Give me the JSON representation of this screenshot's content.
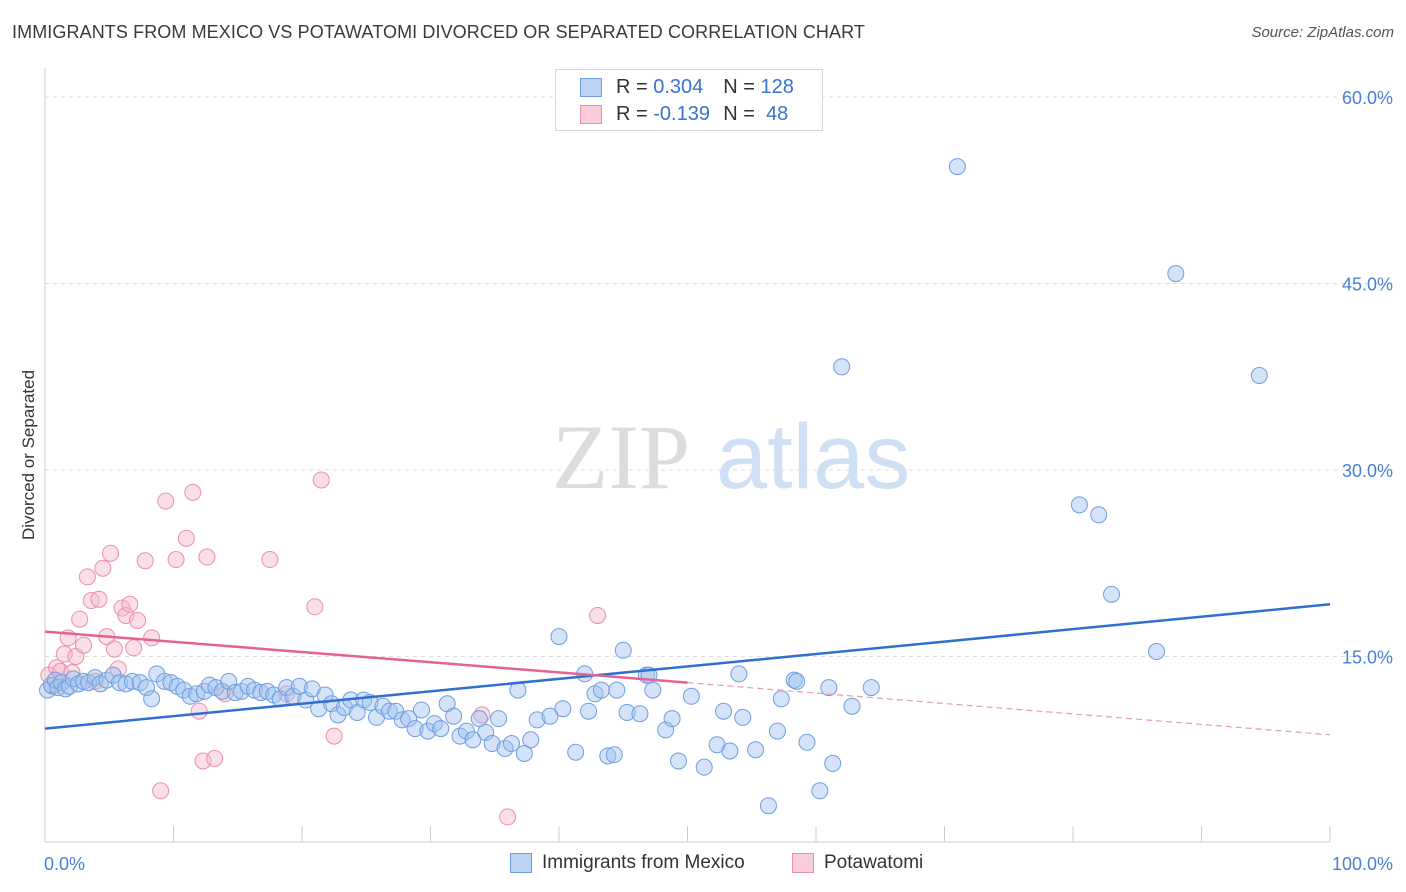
{
  "title": "IMMIGRANTS FROM MEXICO VS POTAWATOMI DIVORCED OR SEPARATED CORRELATION CHART",
  "source": "Source: ZipAtlas.com",
  "watermark": {
    "zip": "ZIP",
    "atlas": "atlas"
  },
  "legend_top": [
    {
      "r_label": "R =",
      "r_value": "0.304",
      "n_label": "N =",
      "n_value": "128",
      "color": "#9fc0ee",
      "border": "#6f9ee0"
    },
    {
      "r_label": "R =",
      "r_value": "-0.139",
      "n_label": "N =",
      "n_value": "48",
      "color": "#f6b9cc",
      "border": "#ea8fab"
    }
  ],
  "chart_data": {
    "type": "scatter",
    "title": "IMMIGRANTS FROM MEXICO VS POTAWATOMI DIVORCED OR SEPARATED CORRELATION CHART",
    "xlabel": "",
    "ylabel": "Divorced or Separated",
    "xlim": [
      0,
      100
    ],
    "ylim": [
      0,
      60
    ],
    "x_tick_labels": [
      "0.0%",
      "100.0%"
    ],
    "y_ticks": [
      15,
      30,
      45,
      60
    ],
    "y_tick_labels": [
      "15.0%",
      "30.0%",
      "45.0%",
      "60.0%"
    ],
    "grid": true,
    "legend_placement": "top-center",
    "series": [
      {
        "name": "Immigrants from Mexico",
        "color": "#9fc0ee",
        "edge": "#6f9ee0",
        "trend": {
          "x": [
            0,
            100
          ],
          "y": [
            9.2,
            19.2
          ],
          "color": "#2f6fd0"
        },
        "points": [
          [
            0.2,
            12.3
          ],
          [
            0.5,
            12.7
          ],
          [
            0.8,
            13.1
          ],
          [
            1.0,
            12.5
          ],
          [
            1.3,
            12.9
          ],
          [
            1.6,
            12.4
          ],
          [
            1.9,
            12.6
          ],
          [
            2.2,
            13.2
          ],
          [
            2.6,
            12.8
          ],
          [
            3.0,
            13.0
          ],
          [
            3.4,
            12.9
          ],
          [
            3.9,
            13.3
          ],
          [
            4.3,
            12.8
          ],
          [
            4.8,
            13.1
          ],
          [
            5.3,
            13.5
          ],
          [
            5.8,
            12.9
          ],
          [
            6.3,
            12.8
          ],
          [
            6.8,
            13.0
          ],
          [
            7.4,
            12.9
          ],
          [
            7.9,
            12.5
          ],
          [
            8.3,
            11.6
          ],
          [
            8.7,
            13.6
          ],
          [
            9.3,
            13.0
          ],
          [
            9.8,
            12.9
          ],
          [
            10.3,
            12.6
          ],
          [
            10.8,
            12.3
          ],
          [
            11.3,
            11.8
          ],
          [
            11.8,
            12.0
          ],
          [
            12.4,
            12.2
          ],
          [
            12.8,
            12.7
          ],
          [
            13.3,
            12.5
          ],
          [
            13.8,
            12.2
          ],
          [
            14.3,
            13.0
          ],
          [
            14.8,
            12.1
          ],
          [
            15.3,
            12.2
          ],
          [
            15.8,
            12.6
          ],
          [
            16.3,
            12.3
          ],
          [
            16.8,
            12.1
          ],
          [
            17.3,
            12.2
          ],
          [
            17.8,
            11.9
          ],
          [
            18.3,
            11.6
          ],
          [
            18.8,
            12.5
          ],
          [
            19.3,
            11.8
          ],
          [
            19.8,
            12.6
          ],
          [
            20.3,
            11.5
          ],
          [
            20.8,
            12.4
          ],
          [
            21.3,
            10.8
          ],
          [
            21.8,
            11.9
          ],
          [
            22.3,
            11.2
          ],
          [
            22.8,
            10.3
          ],
          [
            23.3,
            10.9
          ],
          [
            23.8,
            11.5
          ],
          [
            24.3,
            10.5
          ],
          [
            24.8,
            11.5
          ],
          [
            25.3,
            11.3
          ],
          [
            25.8,
            10.1
          ],
          [
            26.3,
            11.0
          ],
          [
            26.8,
            10.6
          ],
          [
            27.3,
            10.6
          ],
          [
            27.8,
            9.9
          ],
          [
            28.3,
            10.0
          ],
          [
            28.8,
            9.2
          ],
          [
            29.3,
            10.7
          ],
          [
            29.8,
            9.0
          ],
          [
            30.3,
            9.6
          ],
          [
            30.8,
            9.2
          ],
          [
            31.3,
            11.2
          ],
          [
            31.8,
            10.2
          ],
          [
            32.3,
            8.6
          ],
          [
            32.8,
            9.0
          ],
          [
            33.3,
            8.3
          ],
          [
            33.8,
            10.0
          ],
          [
            34.3,
            8.9
          ],
          [
            34.8,
            8.0
          ],
          [
            35.3,
            10.0
          ],
          [
            35.8,
            7.6
          ],
          [
            36.3,
            8.0
          ],
          [
            36.8,
            12.3
          ],
          [
            37.3,
            7.2
          ],
          [
            37.8,
            8.3
          ],
          [
            38.3,
            9.9
          ],
          [
            39.3,
            10.2
          ],
          [
            40.3,
            10.8
          ],
          [
            41.3,
            7.3
          ],
          [
            42.3,
            10.6
          ],
          [
            42.8,
            12.0
          ],
          [
            43.3,
            12.3
          ],
          [
            43.8,
            7.0
          ],
          [
            44.3,
            7.1
          ],
          [
            45.3,
            10.5
          ],
          [
            46.3,
            10.4
          ],
          [
            46.8,
            13.5
          ],
          [
            47.3,
            12.3
          ],
          [
            48.3,
            9.1
          ],
          [
            48.8,
            10.0
          ],
          [
            49.3,
            6.6
          ],
          [
            50.3,
            11.8
          ],
          [
            51.3,
            6.1
          ],
          [
            52.3,
            7.9
          ],
          [
            52.8,
            10.6
          ],
          [
            53.3,
            7.4
          ],
          [
            54.3,
            10.1
          ],
          [
            55.3,
            7.5
          ],
          [
            56.3,
            3.0
          ],
          [
            57.3,
            11.6
          ],
          [
            58.3,
            13.1
          ],
          [
            59.3,
            8.1
          ],
          [
            60.3,
            4.2
          ],
          [
            61.3,
            6.4
          ],
          [
            62.8,
            11.0
          ],
          [
            64.3,
            12.5
          ],
          [
            61.0,
            12.5
          ],
          [
            58.5,
            13.0
          ],
          [
            57.0,
            9.0
          ],
          [
            54.0,
            13.6
          ],
          [
            47.0,
            13.5
          ],
          [
            45.0,
            15.5
          ],
          [
            40.0,
            16.6
          ],
          [
            42.0,
            13.6
          ],
          [
            44.5,
            12.3
          ],
          [
            62.0,
            38.3
          ],
          [
            71.0,
            54.4
          ],
          [
            80.5,
            27.2
          ],
          [
            82.0,
            26.4
          ],
          [
            83.0,
            20.0
          ],
          [
            86.5,
            15.4
          ],
          [
            88.0,
            45.8
          ],
          [
            94.5,
            37.6
          ]
        ]
      },
      {
        "name": "Potawatomi",
        "color": "#f6b9cc",
        "edge": "#ea8fab",
        "trend": {
          "x": [
            0,
            50
          ],
          "y": [
            17.0,
            12.9
          ],
          "color": "#e3628e"
        },
        "trend_dashed": {
          "x": [
            50,
            100
          ],
          "y": [
            12.9,
            8.7
          ],
          "color": "#e99ab3"
        },
        "points": [
          [
            0.3,
            13.5
          ],
          [
            0.6,
            12.6
          ],
          [
            0.9,
            14.1
          ],
          [
            1.2,
            13.8
          ],
          [
            1.5,
            15.2
          ],
          [
            1.8,
            16.5
          ],
          [
            2.1,
            13.7
          ],
          [
            2.4,
            15.0
          ],
          [
            2.7,
            18.0
          ],
          [
            3.0,
            15.9
          ],
          [
            3.3,
            21.4
          ],
          [
            3.6,
            19.5
          ],
          [
            3.9,
            13.0
          ],
          [
            4.2,
            19.6
          ],
          [
            4.5,
            22.1
          ],
          [
            4.8,
            16.6
          ],
          [
            5.1,
            23.3
          ],
          [
            5.4,
            15.6
          ],
          [
            5.7,
            14.0
          ],
          [
            6.0,
            18.9
          ],
          [
            6.3,
            18.3
          ],
          [
            6.6,
            19.2
          ],
          [
            6.9,
            15.7
          ],
          [
            7.2,
            17.9
          ],
          [
            7.8,
            22.7
          ],
          [
            8.3,
            16.5
          ],
          [
            9.0,
            4.2
          ],
          [
            9.4,
            27.5
          ],
          [
            10.2,
            22.8
          ],
          [
            11.0,
            24.5
          ],
          [
            11.5,
            28.2
          ],
          [
            12.0,
            10.6
          ],
          [
            12.3,
            6.6
          ],
          [
            12.6,
            23.0
          ],
          [
            13.2,
            6.8
          ],
          [
            14.0,
            12.0
          ],
          [
            17.5,
            22.8
          ],
          [
            18.8,
            12.0
          ],
          [
            21.0,
            19.0
          ],
          [
            21.5,
            29.2
          ],
          [
            22.5,
            8.6
          ],
          [
            34.0,
            10.3
          ],
          [
            36.0,
            2.1
          ],
          [
            43.0,
            18.3
          ]
        ]
      }
    ]
  }
}
